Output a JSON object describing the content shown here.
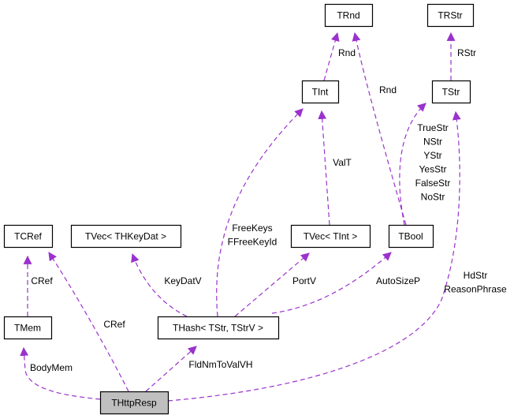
{
  "edge_color": "#9a32cd",
  "highlight_fill": "#bfbfbf",
  "nodes": {
    "trnd": "TRnd",
    "trstr": "TRStr",
    "tint": "TInt",
    "tstr": "TStr",
    "tcref": "TCRef",
    "tvec_thkeydat": "TVec< THKeyDat >",
    "tvec_tint": "TVec< TInt >",
    "tbool": "TBool",
    "tmem": "TMem",
    "thash": "THash< TStr, TStrV >",
    "thttpresp": "THttpResp"
  },
  "edges": [
    {
      "from": "thttpresp",
      "to": "tmem",
      "labels": [
        "BodyMem"
      ]
    },
    {
      "from": "thttpresp",
      "to": "tcref",
      "labels": [
        "CRef"
      ]
    },
    {
      "from": "tmem",
      "to": "tcref",
      "labels": [
        "CRef"
      ]
    },
    {
      "from": "thttpresp",
      "to": "thash",
      "labels": [
        "FldNmToValVH"
      ]
    },
    {
      "from": "thttpresp",
      "to": "tstr",
      "labels": [
        "HdStr",
        "ReasonPhrase"
      ]
    },
    {
      "from": "thash",
      "to": "tvec_thkeydat",
      "labels": [
        "KeyDatV"
      ]
    },
    {
      "from": "thash",
      "to": "tint",
      "labels": [
        "FreeKeys",
        "FFreeKeyId"
      ]
    },
    {
      "from": "thash",
      "to": "tvec_tint",
      "labels": [
        "PortV"
      ]
    },
    {
      "from": "thash",
      "to": "tbool",
      "labels": [
        "AutoSizeP"
      ]
    },
    {
      "from": "tvec_tint",
      "to": "tint",
      "labels": [
        "ValT"
      ]
    },
    {
      "from": "tbool",
      "to": "tstr",
      "labels": [
        "TrueStr",
        "NStr",
        "YStr",
        "YesStr",
        "FalseStr",
        "NoStr"
      ]
    },
    {
      "from": "tbool",
      "to": "trnd",
      "labels": [
        "Rnd"
      ]
    },
    {
      "from": "tint",
      "to": "trnd",
      "labels": [
        "Rnd"
      ]
    },
    {
      "from": "tstr",
      "to": "trstr",
      "labels": [
        "RStr"
      ]
    }
  ]
}
